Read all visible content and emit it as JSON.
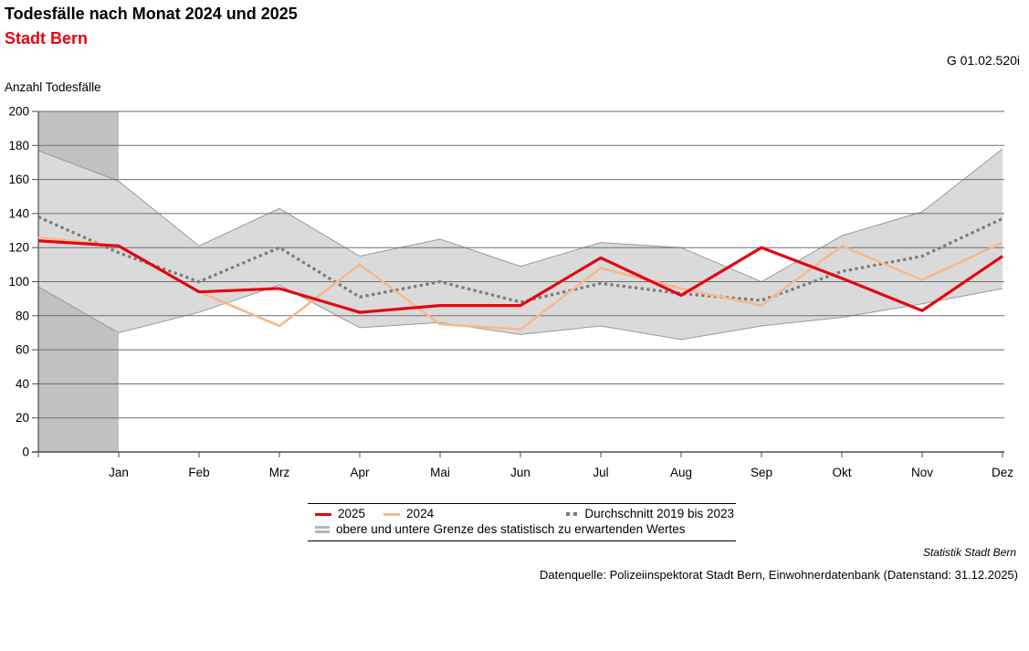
{
  "header": {
    "title": "Todesfälle nach Monat 2024 und 2025",
    "subtitle": "Stadt Bern",
    "subtitle_color": "#e30613",
    "chart_id": "G 01.02.520i"
  },
  "chart_data": {
    "type": "line",
    "title": "Todesfälle nach Monat 2024 und 2025",
    "ylabel": "Anzahl Todesfälle",
    "xlabel": "",
    "ylim": [
      0,
      200
    ],
    "ytick_step": 20,
    "grid": "horizontal",
    "legend_position": "bottom",
    "categories": [
      "",
      "Jan",
      "Feb",
      "Mrz",
      "Apr",
      "Mai",
      "Jun",
      "Jul",
      "Aug",
      "Sep",
      "Okt",
      "Nov",
      "Dez"
    ],
    "first_point_note": "unlabeled start point on y-axis",
    "series": [
      {
        "name": "2025",
        "color": "#e30613",
        "style": "solid",
        "width": 3.2,
        "values": [
          124,
          121,
          94,
          96,
          82,
          86,
          86,
          114,
          92,
          120,
          102,
          83,
          115
        ]
      },
      {
        "name": "2024",
        "color": "#f5b98c",
        "style": "solid",
        "width": 2.6,
        "values": [
          126,
          121,
          94,
          74,
          110,
          75,
          72,
          108,
          96,
          86,
          121,
          101,
          123
        ]
      },
      {
        "name": "Durchschnitt 2019 bis 2023",
        "color": "#7b7b7b",
        "style": "dotted",
        "width": 3.2,
        "values": [
          138,
          117,
          100,
          120,
          91,
          100,
          88,
          99,
          93,
          89,
          106,
          115,
          137
        ]
      }
    ],
    "band": {
      "name": "obere und untere Grenze des statistisch zu erwartenden Wertes",
      "fill": "#dadada",
      "stroke": "#9a9a9a",
      "upper": [
        177,
        159,
        121,
        143,
        115,
        125,
        109,
        123,
        120,
        100,
        127,
        141,
        178
      ],
      "lower": [
        97,
        70,
        82,
        98,
        73,
        76,
        69,
        74,
        66,
        74,
        79,
        87,
        96
      ]
    },
    "highlight": {
      "from_index": 0,
      "to_index": 1,
      "color": "#c1c1c1"
    },
    "colors": {
      "gridline": "#6e6e6e",
      "axis": "#4d4d4d",
      "tick_label": "#000000"
    }
  },
  "footer": {
    "attribution": "Statistik Stadt Bern",
    "source": "Datenquelle: Polizeiinspektorat Stadt Bern, Einwohnerdatenbank (Datenstand: 31.12.2025)"
  }
}
